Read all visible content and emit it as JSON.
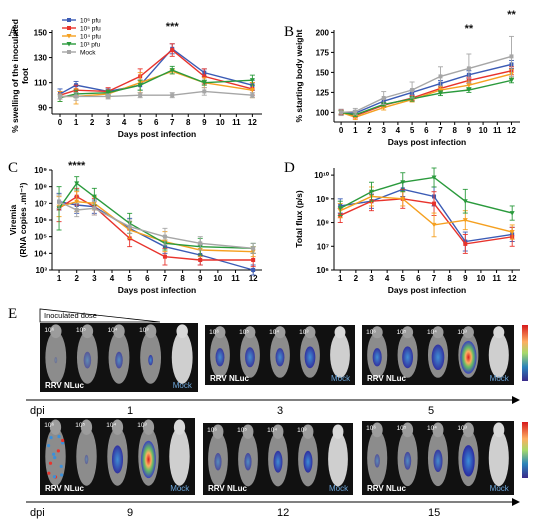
{
  "colors": {
    "e6": "#3b5bb5",
    "e5": "#e8332c",
    "e4": "#f5a020",
    "e3": "#2a9a3c",
    "mock": "#a6a6a6"
  },
  "chart_data": [
    {
      "panel": "A",
      "type": "line",
      "xlabel": "Days post infection",
      "ylabel": "% swelling of the inoculated foot",
      "x": [
        0,
        1,
        2,
        3,
        4,
        5,
        6,
        7,
        8,
        9,
        10,
        11,
        12
      ],
      "xticks": [
        "0",
        "1",
        "2",
        "3",
        "4",
        "5",
        "6",
        "7",
        "8",
        "9",
        "10",
        "11",
        "12"
      ],
      "yticks": [
        "90",
        "110",
        "130",
        "150"
      ],
      "ylim": [
        85,
        152
      ],
      "annotation": "***",
      "annotation_x": 7,
      "legend": [
        "10⁶ pfu",
        "10⁵ pfu",
        "10⁴ pfu",
        "10³ pfu",
        "Mock"
      ],
      "series": [
        {
          "name": "10⁶ pfu",
          "key": "e6",
          "x": [
            0,
            1,
            3,
            5,
            7,
            9,
            12
          ],
          "y": [
            101,
            108,
            103,
            108,
            137,
            118,
            108
          ],
          "err": [
            4,
            3,
            2,
            4,
            4,
            3,
            4
          ]
        },
        {
          "name": "10⁵ pfu",
          "key": "e5",
          "x": [
            0,
            1,
            3,
            5,
            7,
            9,
            12
          ],
          "y": [
            100,
            104,
            103,
            115,
            136,
            115,
            105
          ],
          "err": [
            3,
            4,
            3,
            6,
            5,
            6,
            5
          ]
        },
        {
          "name": "10⁴ pfu",
          "key": "e4",
          "x": [
            0,
            1,
            3,
            5,
            7,
            9,
            12
          ],
          "y": [
            99,
            99,
            101,
            110,
            119,
            110,
            104
          ],
          "err": [
            4,
            6,
            3,
            8,
            2,
            4,
            6
          ]
        },
        {
          "name": "10³ pfu",
          "key": "e3",
          "x": [
            0,
            1,
            3,
            5,
            7,
            9,
            12
          ],
          "y": [
            98,
            101,
            102,
            108,
            120,
            110,
            112
          ],
          "err": [
            3,
            3,
            2,
            4,
            3,
            2,
            4
          ]
        },
        {
          "name": "Mock",
          "key": "mock",
          "x": [
            0,
            1,
            3,
            5,
            7,
            9,
            12
          ],
          "y": [
            99,
            99,
            99,
            100,
            100,
            103,
            100
          ],
          "err": [
            2,
            3,
            2,
            2,
            2,
            3,
            2
          ]
        }
      ]
    },
    {
      "panel": "B",
      "type": "line",
      "xlabel": "Days post infection",
      "ylabel": "% starting body weight",
      "x": [
        0,
        1,
        2,
        3,
        4,
        5,
        6,
        7,
        8,
        9,
        10,
        11,
        12
      ],
      "xticks": [
        "0",
        "1",
        "2",
        "3",
        "4",
        "5",
        "6",
        "7",
        "8",
        "9",
        "10",
        "11",
        "12"
      ],
      "yticks": [
        "100",
        "125",
        "150",
        "175",
        "200"
      ],
      "ylim": [
        88,
        203
      ],
      "annotations": [
        {
          "text": "**",
          "x": 9
        },
        {
          "text": "**",
          "x": 12
        }
      ],
      "series": [
        {
          "name": "10⁶ pfu",
          "key": "e6",
          "x": [
            0,
            1,
            3,
            5,
            7,
            9,
            12
          ],
          "y": [
            100,
            99,
            114,
            125,
            136,
            147,
            160
          ],
          "err": [
            3,
            3,
            3,
            3,
            4,
            5,
            5
          ]
        },
        {
          "name": "10⁵ pfu",
          "key": "e5",
          "x": [
            0,
            1,
            3,
            5,
            7,
            9,
            12
          ],
          "y": [
            100,
            96,
            109,
            118,
            130,
            140,
            152
          ],
          "err": [
            3,
            3,
            3,
            3,
            3,
            4,
            5
          ]
        },
        {
          "name": "10⁴ pfu",
          "key": "e4",
          "x": [
            0,
            1,
            3,
            5,
            7,
            9,
            12
          ],
          "y": [
            100,
            94,
            106,
            116,
            128,
            134,
            148
          ],
          "err": [
            2,
            3,
            3,
            3,
            4,
            5,
            6
          ]
        },
        {
          "name": "10³ pfu",
          "key": "e3",
          "x": [
            0,
            1,
            3,
            5,
            7,
            9,
            12
          ],
          "y": [
            100,
            97,
            110,
            117,
            124,
            128,
            140
          ],
          "err": [
            2,
            2,
            2,
            3,
            3,
            3,
            3
          ]
        },
        {
          "name": "Mock",
          "key": "mock",
          "x": [
            0,
            1,
            3,
            5,
            7,
            9,
            12
          ],
          "y": [
            100,
            101,
            118,
            128,
            145,
            155,
            170
          ],
          "err": [
            4,
            4,
            8,
            10,
            12,
            18,
            25
          ]
        }
      ]
    },
    {
      "panel": "C",
      "type": "line",
      "yscale": "log",
      "xlabel": "Days post infection",
      "ylabel": "Viremia (RNA copies .ml⁻¹)",
      "x": [
        1,
        2,
        3,
        4,
        5,
        6,
        7,
        8,
        9,
        10,
        11,
        12
      ],
      "xticks": [
        "1",
        "2",
        "3",
        "4",
        "5",
        "6",
        "7",
        "8",
        "9",
        "10",
        "11",
        "12"
      ],
      "yticks": [
        "10³",
        "10⁴",
        "10⁵",
        "10⁶",
        "10⁷",
        "10⁸",
        "10⁹"
      ],
      "ylim_exp": [
        3,
        9
      ],
      "annotation": "****",
      "annotation_x": 2,
      "series": [
        {
          "name": "10⁶ pfu",
          "key": "e6",
          "x": [
            1,
            2,
            3,
            5,
            7,
            9,
            12
          ],
          "logy": [
            7.1,
            6.9,
            6.8,
            5.5,
            4.4,
            3.9,
            3.0
          ],
          "err": [
            0.5,
            0.5,
            0.4,
            0.6,
            0.4,
            0.6,
            0.3
          ]
        },
        {
          "name": "10⁵ pfu",
          "key": "e5",
          "x": [
            1,
            2,
            3,
            5,
            7,
            9,
            12
          ],
          "logy": [
            6.7,
            7.4,
            6.8,
            4.9,
            3.8,
            3.6,
            3.6
          ],
          "err": [
            0.8,
            0.5,
            0.5,
            0.5,
            0.5,
            0.3,
            0.4
          ]
        },
        {
          "name": "10⁴ pfu",
          "key": "e4",
          "x": [
            1,
            2,
            3,
            5,
            7,
            9,
            12
          ],
          "logy": [
            6.8,
            7.1,
            7.0,
            5.4,
            4.7,
            4.2,
            4.1
          ],
          "err": [
            0.6,
            0.6,
            0.4,
            0.5,
            0.6,
            0.4,
            0.3
          ]
        },
        {
          "name": "10³ pfu",
          "key": "e3",
          "x": [
            1,
            2,
            3,
            5,
            7,
            9,
            12
          ],
          "logy": [
            6.7,
            8.2,
            7.4,
            5.8,
            4.6,
            4.4,
            4.3
          ],
          "err": [
            1.3,
            0.4,
            0.5,
            0.6,
            0.4,
            0.5,
            0.3
          ]
        },
        {
          "name": "Mock",
          "key": "mock",
          "x": [
            1,
            2,
            3,
            5,
            7,
            9,
            12
          ],
          "logy": [
            7.1,
            6.6,
            6.7,
            5.6,
            5.0,
            4.6,
            4.3
          ],
          "err": [
            0.4,
            0.4,
            0.4,
            0.4,
            0.5,
            0.4,
            0.3
          ]
        }
      ]
    },
    {
      "panel": "D",
      "type": "line",
      "yscale": "log",
      "xlabel": "Days post infection",
      "ylabel": "Total flux (p/s)",
      "x": [
        1,
        2,
        3,
        4,
        5,
        6,
        7,
        8,
        9,
        10,
        11,
        12
      ],
      "xticks": [
        "1",
        "2",
        "3",
        "4",
        "5",
        "6",
        "7",
        "8",
        "9",
        "10",
        "11",
        "12"
      ],
      "yticks": [
        "10⁶",
        "10⁷",
        "10⁸",
        "10⁹",
        "10¹⁰"
      ],
      "ylim_exp": [
        6,
        10.3
      ],
      "series": [
        {
          "name": "10⁶ pfu",
          "key": "e6",
          "x": [
            1,
            3,
            5,
            7,
            9,
            12
          ],
          "logy": [
            8.7,
            8.9,
            9.4,
            9.1,
            7.2,
            7.5
          ],
          "err": [
            0.3,
            0.3,
            0.3,
            0.4,
            0.4,
            0.3
          ]
        },
        {
          "name": "10⁵ pfu",
          "key": "e5",
          "x": [
            1,
            3,
            5,
            7,
            9,
            12
          ],
          "logy": [
            8.3,
            8.9,
            9.0,
            8.8,
            7.1,
            7.4
          ],
          "err": [
            0.3,
            0.4,
            0.4,
            0.5,
            0.4,
            0.4
          ]
        },
        {
          "name": "10⁴ pfu",
          "key": "e4",
          "x": [
            1,
            3,
            5,
            7,
            9,
            12
          ],
          "logy": [
            8.5,
            9.1,
            9.0,
            7.9,
            8.1,
            7.6
          ],
          "err": [
            0.3,
            0.4,
            0.3,
            0.5,
            0.4,
            0.3
          ]
        },
        {
          "name": "10³ pfu",
          "key": "e3",
          "x": [
            1,
            3,
            5,
            7,
            9,
            12
          ],
          "logy": [
            8.6,
            9.3,
            9.7,
            9.9,
            8.9,
            8.4
          ],
          "err": [
            0.3,
            0.4,
            0.4,
            0.4,
            0.5,
            0.3
          ]
        }
      ]
    }
  ],
  "panels": {
    "a": "A",
    "b": "B",
    "c": "C",
    "d": "D",
    "e": "E"
  },
  "imaging": {
    "inoculated_dose": "Inoculated dose",
    "dpi_label": "dpi",
    "rrv": "RRV NLuc",
    "mock": "Mock",
    "doses": [
      "10⁶",
      "10⁵",
      "10⁴",
      "10³"
    ],
    "days_row1": [
      "1",
      "3",
      "5"
    ],
    "days_row2": [
      "9",
      "12",
      "15"
    ]
  }
}
